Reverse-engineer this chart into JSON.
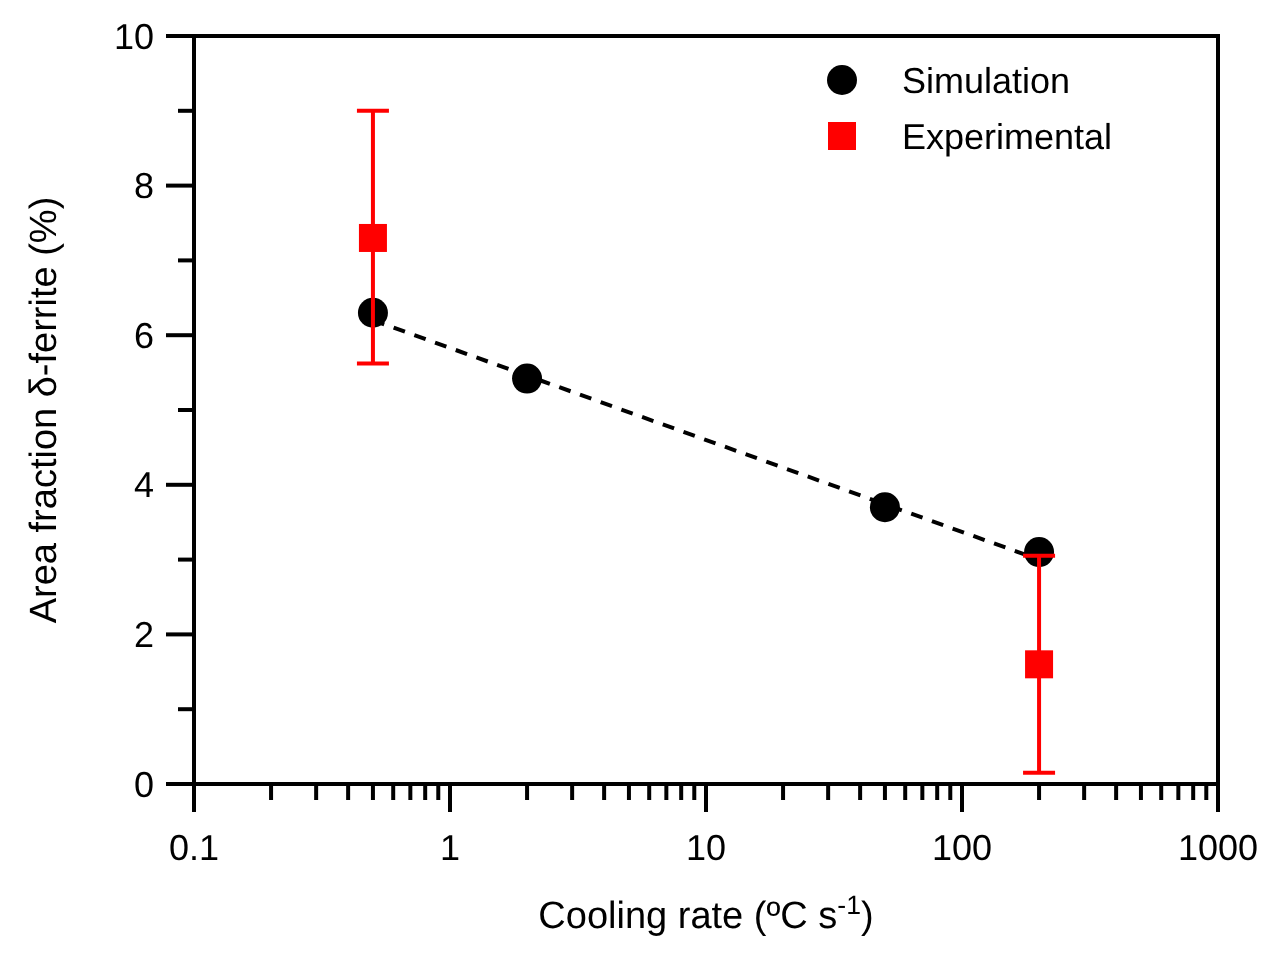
{
  "chart_data": {
    "type": "scatter",
    "xlabel": "Cooling rate (ºC s$^{-1}$)",
    "ylabel": "Area fraction δ-ferrite (%)",
    "log": "x",
    "xlim": [
      0.1,
      1000
    ],
    "ylim": [
      0,
      10
    ],
    "xticks": [
      0.1,
      {
        "value": 0.2,
        "label": null
      },
      {
        "value": 0.3,
        "label": null
      },
      {
        "value": 0.4,
        "label": null
      },
      {
        "value": 0.5,
        "label": null
      },
      {
        "value": 0.6,
        "label": null
      },
      {
        "value": 0.7,
        "label": null
      },
      {
        "value": 0.8,
        "label": null
      },
      {
        "value": 0.9,
        "label": null
      },
      1,
      {
        "value": 2,
        "label": null
      },
      {
        "value": 3,
        "label": null
      },
      {
        "value": 4,
        "label": null
      },
      {
        "value": 5,
        "label": null
      },
      {
        "value": 6,
        "label": null
      },
      {
        "value": 7,
        "label": null
      },
      {
        "value": 8,
        "label": null
      },
      {
        "value": 9,
        "label": null
      },
      10,
      {
        "value": 20,
        "label": null
      },
      {
        "value": 30,
        "label": null
      },
      {
        "value": 40,
        "label": null
      },
      {
        "value": 50,
        "label": null
      },
      {
        "value": 60,
        "label": null
      },
      {
        "value": 70,
        "label": null
      },
      {
        "value": 80,
        "label": null
      },
      {
        "value": 90,
        "label": null
      },
      100,
      {
        "value": 200,
        "label": null
      },
      {
        "value": 300,
        "label": null
      },
      {
        "value": 400,
        "label": null
      },
      {
        "value": 500,
        "label": null
      },
      {
        "value": 600,
        "label": null
      },
      {
        "value": 700,
        "label": null
      },
      {
        "value": 800,
        "label": null
      },
      {
        "value": 900,
        "label": null
      },
      1000
    ],
    "yticks": [
      0,
      {
        "value": 1,
        "label": null
      },
      2,
      {
        "value": 3,
        "label": null
      },
      4,
      {
        "value": 5,
        "label": null
      },
      6,
      {
        "value": 7,
        "label": null
      },
      8,
      {
        "value": 9,
        "label": null
      },
      10
    ],
    "grid": false,
    "legend": "top right",
    "series": [
      {
        "type": "line",
        "x": [
          0.5,
          200
        ],
        "values": [
          6.2,
          3.0
        ],
        "color": "#000000",
        "line_style": "dashed",
        "marker": "none"
      },
      {
        "name": "Simulation",
        "x": [
          0.5,
          2,
          50,
          200
        ],
        "values": [
          6.3,
          5.42,
          3.7,
          3.1
        ],
        "color": "#000000",
        "marker": "circle"
      },
      {
        "name": "Experimental",
        "x": [
          0.5,
          200
        ],
        "values": [
          7.3,
          1.6
        ],
        "errors": [
          [
            5.62,
            9.0
          ],
          [
            0.15,
            3.05
          ]
        ],
        "color": "#ff0000",
        "marker": "square"
      }
    ]
  }
}
